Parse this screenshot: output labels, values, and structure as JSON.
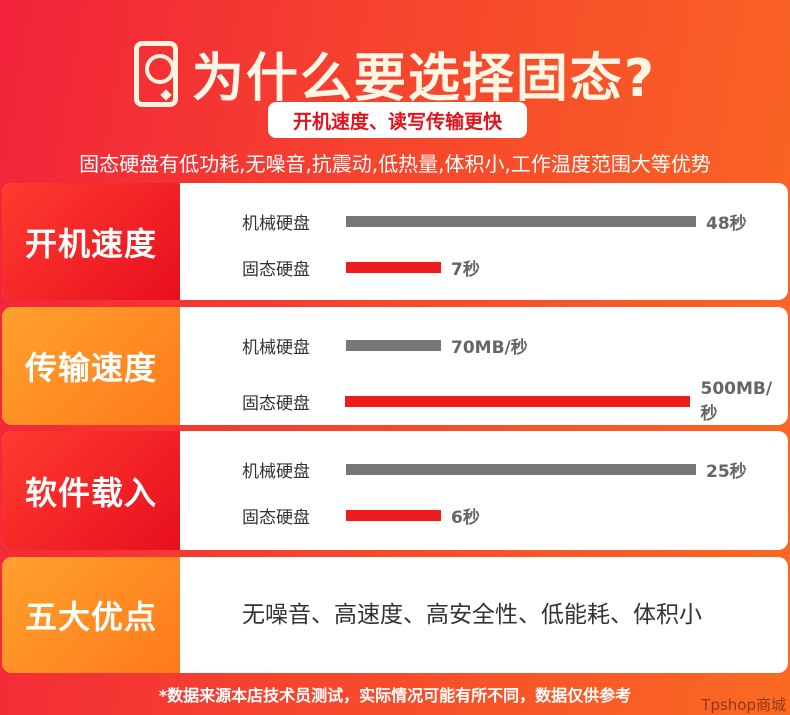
{
  "header": {
    "title": "为什么要选择固态?",
    "badge": "开机速度、读写传输更快",
    "subtitle": "固态硬盘有低功耗,无噪音,抗震动,低热量,体积小,工作温度范围大等优势"
  },
  "colors": {
    "hdd": "#777777",
    "ssd": "#ee1c1c"
  },
  "sections": [
    {
      "label": "开机速度",
      "rows": [
        {
          "name": "机械硬盘",
          "value": 48,
          "text": "48秒"
        },
        {
          "name": "固态硬盘",
          "value": 7,
          "text": "7秒"
        }
      ]
    },
    {
      "label": "传输速度",
      "rows": [
        {
          "name": "机械硬盘",
          "value": 70,
          "text": "70MB/秒"
        },
        {
          "name": "固态硬盘",
          "value": 500,
          "text": "500MB/秒"
        }
      ]
    },
    {
      "label": "软件载入",
      "rows": [
        {
          "name": "机械硬盘",
          "value": 25,
          "text": "25秒"
        },
        {
          "name": "固态硬盘",
          "value": 6,
          "text": "6秒"
        }
      ]
    }
  ],
  "advantages": {
    "label": "五大优点",
    "text": "无噪音、高速度、高安全性、低能耗、体积小"
  },
  "footnote": "*数据来源本店技术员测试，实际情况可能有所不同，数据仅供参考",
  "watermark": "Tpshop商城"
}
